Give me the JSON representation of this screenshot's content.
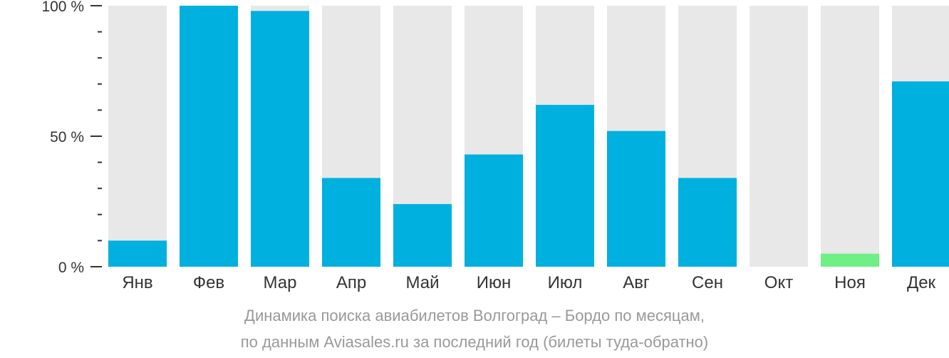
{
  "chart_data": {
    "type": "bar",
    "categories": [
      "Янв",
      "Фев",
      "Мар",
      "Апр",
      "Май",
      "Июн",
      "Июл",
      "Авг",
      "Сен",
      "Окт",
      "Ноя",
      "Дек"
    ],
    "values": [
      10,
      100,
      98,
      34,
      24,
      43,
      62,
      52,
      34,
      0,
      5,
      71
    ],
    "highlight": [
      null,
      null,
      null,
      null,
      null,
      null,
      null,
      null,
      null,
      null,
      "#6ef085",
      null
    ],
    "ylim": [
      0,
      100
    ],
    "yticks": [
      {
        "value": 0,
        "label": "0 %"
      },
      {
        "value": 50,
        "label": "50 %"
      },
      {
        "value": 100,
        "label": "100 %"
      }
    ],
    "minor_ticks": [
      10,
      20,
      30,
      40,
      60,
      70,
      80,
      90
    ],
    "colors": {
      "bar": "#00b0de",
      "background_bar": "#e8e8e8",
      "axis": "#333333",
      "highlight": "#6ef085"
    },
    "grid": false,
    "legend": "none"
  },
  "caption": {
    "line1": "Динамика поиска авиабилетов Волгоград – Бордо по месяцам,",
    "line2": "по данным Aviasales.ru за последний год (билеты туда-обратно)"
  }
}
